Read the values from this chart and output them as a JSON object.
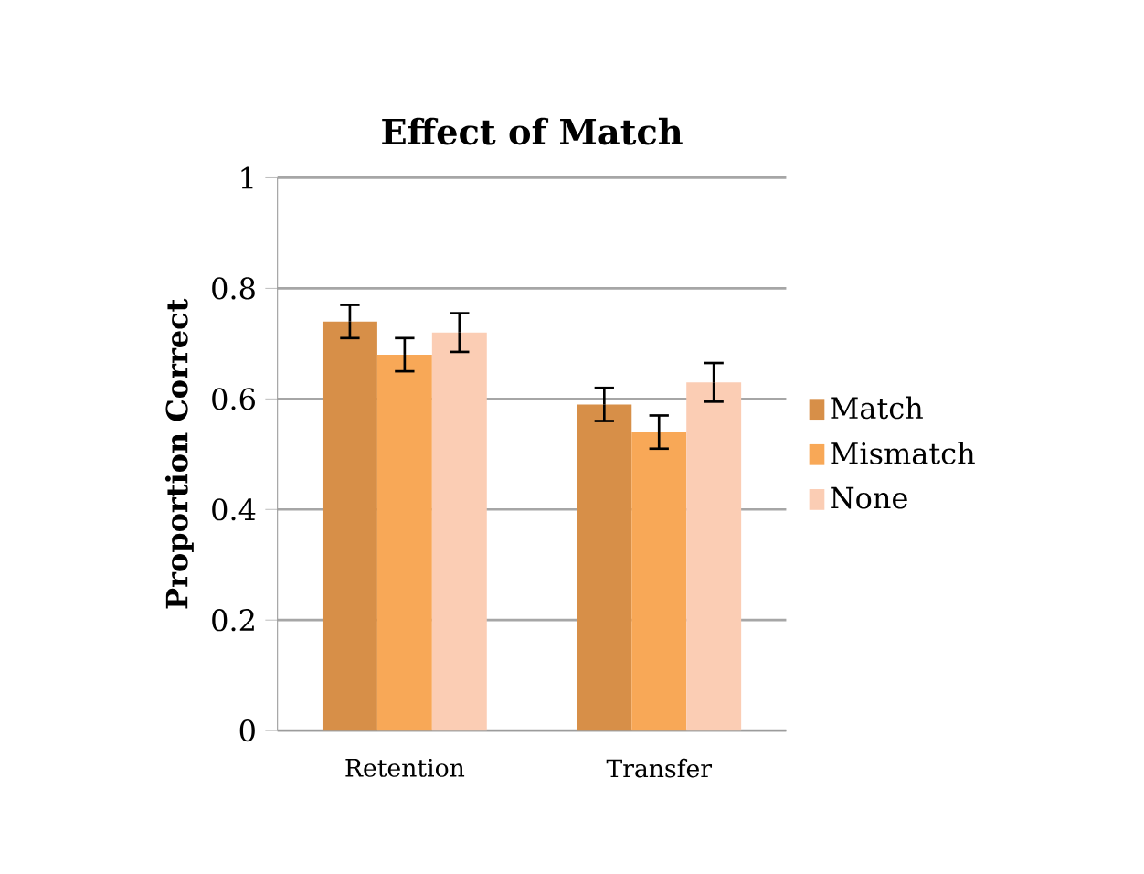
{
  "chart_data": {
    "type": "bar",
    "title": "Effect of Match",
    "ylabel": "Proportion Correct",
    "categories": [
      "Retention",
      "Transfer"
    ],
    "series": [
      {
        "name": "Match",
        "color": "#d78f48",
        "values": [
          0.74,
          0.59
        ],
        "errors": [
          0.03,
          0.03
        ]
      },
      {
        "name": "Mismatch",
        "color": "#f8a857",
        "values": [
          0.68,
          0.54
        ],
        "errors": [
          0.03,
          0.03
        ]
      },
      {
        "name": "None",
        "color": "#fbcdb4",
        "values": [
          0.72,
          0.63
        ],
        "errors": [
          0.035,
          0.035
        ]
      }
    ],
    "ylim": [
      0,
      1
    ],
    "yticks": [
      0,
      0.2,
      0.4,
      0.6,
      0.8,
      1
    ],
    "grid": "y",
    "legend": "right"
  }
}
